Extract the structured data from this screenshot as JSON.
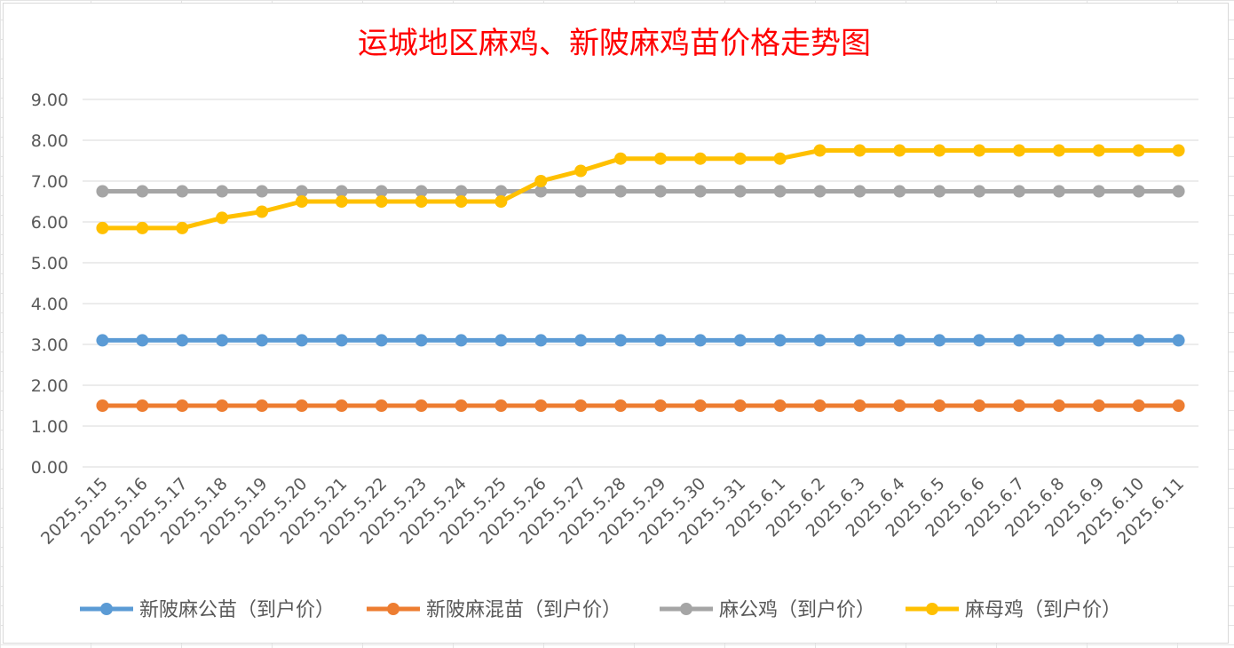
{
  "chart_data": {
    "type": "line",
    "title": "运城地区麻鸡、新陂麻鸡苗价格走势图",
    "xlabel": "",
    "ylabel": "",
    "ylim": [
      0,
      9
    ],
    "ytick_labels": [
      "0.00",
      "1.00",
      "2.00",
      "3.00",
      "4.00",
      "5.00",
      "6.00",
      "7.00",
      "8.00",
      "9.00"
    ],
    "grid": true,
    "legend_position": "bottom",
    "categories": [
      "2025.5.15",
      "2025.5.16",
      "2025.5.17",
      "2025.5.18",
      "2025.5.19",
      "2025.5.20",
      "2025.5.21",
      "2025.5.22",
      "2025.5.23",
      "2025.5.24",
      "2025.5.25",
      "2025.5.26",
      "2025.5.27",
      "2025.5.28",
      "2025.5.29",
      "2025.5.30",
      "2025.5.31",
      "2025.6.1",
      "2025.6.2",
      "2025.6.3",
      "2025.6.4",
      "2025.6.5",
      "2025.6.6",
      "2025.6.7",
      "2025.6.8",
      "2025.6.9",
      "2025.6.10",
      "2025.6.11"
    ],
    "series": [
      {
        "name": "新陂麻公苗（到户价）",
        "color": "#5b9bd5",
        "values": [
          3.1,
          3.1,
          3.1,
          3.1,
          3.1,
          3.1,
          3.1,
          3.1,
          3.1,
          3.1,
          3.1,
          3.1,
          3.1,
          3.1,
          3.1,
          3.1,
          3.1,
          3.1,
          3.1,
          3.1,
          3.1,
          3.1,
          3.1,
          3.1,
          3.1,
          3.1,
          3.1,
          3.1
        ]
      },
      {
        "name": "新陂麻混苗（到户价）",
        "color": "#ed7d31",
        "values": [
          1.5,
          1.5,
          1.5,
          1.5,
          1.5,
          1.5,
          1.5,
          1.5,
          1.5,
          1.5,
          1.5,
          1.5,
          1.5,
          1.5,
          1.5,
          1.5,
          1.5,
          1.5,
          1.5,
          1.5,
          1.5,
          1.5,
          1.5,
          1.5,
          1.5,
          1.5,
          1.5,
          1.5
        ]
      },
      {
        "name": "麻公鸡（到户价）",
        "color": "#a5a5a5",
        "values": [
          6.75,
          6.75,
          6.75,
          6.75,
          6.75,
          6.75,
          6.75,
          6.75,
          6.75,
          6.75,
          6.75,
          6.75,
          6.75,
          6.75,
          6.75,
          6.75,
          6.75,
          6.75,
          6.75,
          6.75,
          6.75,
          6.75,
          6.75,
          6.75,
          6.75,
          6.75,
          6.75,
          6.75
        ]
      },
      {
        "name": "麻母鸡（到户价）",
        "color": "#ffc000",
        "values": [
          5.85,
          5.85,
          5.85,
          6.1,
          6.25,
          6.5,
          6.5,
          6.5,
          6.5,
          6.5,
          6.5,
          7.0,
          7.25,
          7.55,
          7.55,
          7.55,
          7.55,
          7.55,
          7.75,
          7.75,
          7.75,
          7.75,
          7.75,
          7.75,
          7.75,
          7.75,
          7.75,
          7.75
        ]
      }
    ]
  }
}
